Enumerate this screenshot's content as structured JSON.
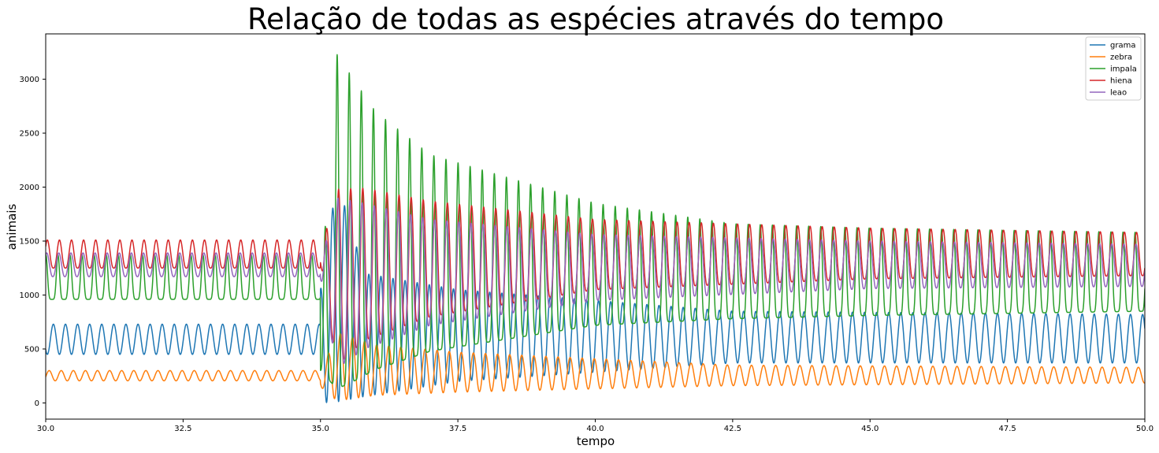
{
  "chart_data": {
    "type": "line",
    "title": "Relação de todas as espécies através do tempo",
    "xlabel": "tempo",
    "ylabel": "animais",
    "xlim": [
      30.0,
      50.0
    ],
    "ylim": [
      -150,
      3420
    ],
    "x_ticks": [
      "30.0",
      "32.5",
      "35.0",
      "37.5",
      "40.0",
      "42.5",
      "45.0",
      "47.5",
      "50.0"
    ],
    "y_ticks": [
      "0",
      "500",
      "1000",
      "1500",
      "2000",
      "2500",
      "3000"
    ],
    "grid": false,
    "legend_position": "top-right",
    "event_time": 35.0,
    "oscillation_period": 0.22,
    "series": [
      {
        "name": "grama",
        "color": "#1f77b4",
        "before": {
          "min": 450,
          "max": 730
        },
        "after": [
          {
            "t": 35.0,
            "min": 0,
            "max": 1050
          },
          {
            "t": 35.3,
            "min": 10,
            "max": 2070
          },
          {
            "t": 35.8,
            "min": 60,
            "max": 1200
          },
          {
            "t": 37.5,
            "min": 200,
            "max": 1050
          },
          {
            "t": 42.5,
            "min": 370,
            "max": 850
          },
          {
            "t": 50.0,
            "min": 370,
            "max": 820
          }
        ]
      },
      {
        "name": "zebra",
        "color": "#ff7f0e",
        "before": {
          "min": 205,
          "max": 300
        },
        "after": [
          {
            "t": 35.0,
            "min": 150,
            "max": 280
          },
          {
            "t": 35.3,
            "min": 20,
            "max": 650
          },
          {
            "t": 36.0,
            "min": 70,
            "max": 540
          },
          {
            "t": 37.5,
            "min": 100,
            "max": 470
          },
          {
            "t": 42.5,
            "min": 160,
            "max": 350
          },
          {
            "t": 50.0,
            "min": 185,
            "max": 330
          }
        ]
      },
      {
        "name": "impala",
        "color": "#2ca02c",
        "before": {
          "min": 960,
          "max": 1370
        },
        "after": [
          {
            "t": 35.0,
            "min": 300,
            "max": 1000
          },
          {
            "t": 35.3,
            "min": 130,
            "max": 3230
          },
          {
            "t": 35.6,
            "min": 200,
            "max": 3000
          },
          {
            "t": 36.0,
            "min": 310,
            "max": 2700
          },
          {
            "t": 37.0,
            "min": 480,
            "max": 2300
          },
          {
            "t": 40.0,
            "min": 720,
            "max": 1850
          },
          {
            "t": 42.5,
            "min": 780,
            "max": 1660
          },
          {
            "t": 45.0,
            "min": 810,
            "max": 1620
          },
          {
            "t": 50.0,
            "min": 850,
            "max": 1580
          }
        ]
      },
      {
        "name": "hiena",
        "color": "#d62728",
        "before": {
          "min": 1250,
          "max": 1510
        },
        "after": [
          {
            "t": 35.0,
            "min": 1300,
            "max": 1400
          },
          {
            "t": 35.3,
            "min": 340,
            "max": 1980
          },
          {
            "t": 35.8,
            "min": 580,
            "max": 1990
          },
          {
            "t": 37.0,
            "min": 800,
            "max": 1870
          },
          {
            "t": 40.0,
            "min": 1050,
            "max": 1700
          },
          {
            "t": 45.0,
            "min": 1150,
            "max": 1620
          },
          {
            "t": 50.0,
            "min": 1180,
            "max": 1580
          }
        ]
      },
      {
        "name": "leao",
        "color": "#9467bd",
        "before": {
          "min": 1170,
          "max": 1390
        },
        "after": [
          {
            "t": 35.0,
            "min": 1150,
            "max": 1300
          },
          {
            "t": 35.3,
            "min": 320,
            "max": 1900
          },
          {
            "t": 35.8,
            "min": 500,
            "max": 1850
          },
          {
            "t": 37.0,
            "min": 720,
            "max": 1700
          },
          {
            "t": 40.0,
            "min": 950,
            "max": 1560
          },
          {
            "t": 45.0,
            "min": 1060,
            "max": 1500
          },
          {
            "t": 50.0,
            "min": 1080,
            "max": 1470
          }
        ]
      }
    ]
  }
}
